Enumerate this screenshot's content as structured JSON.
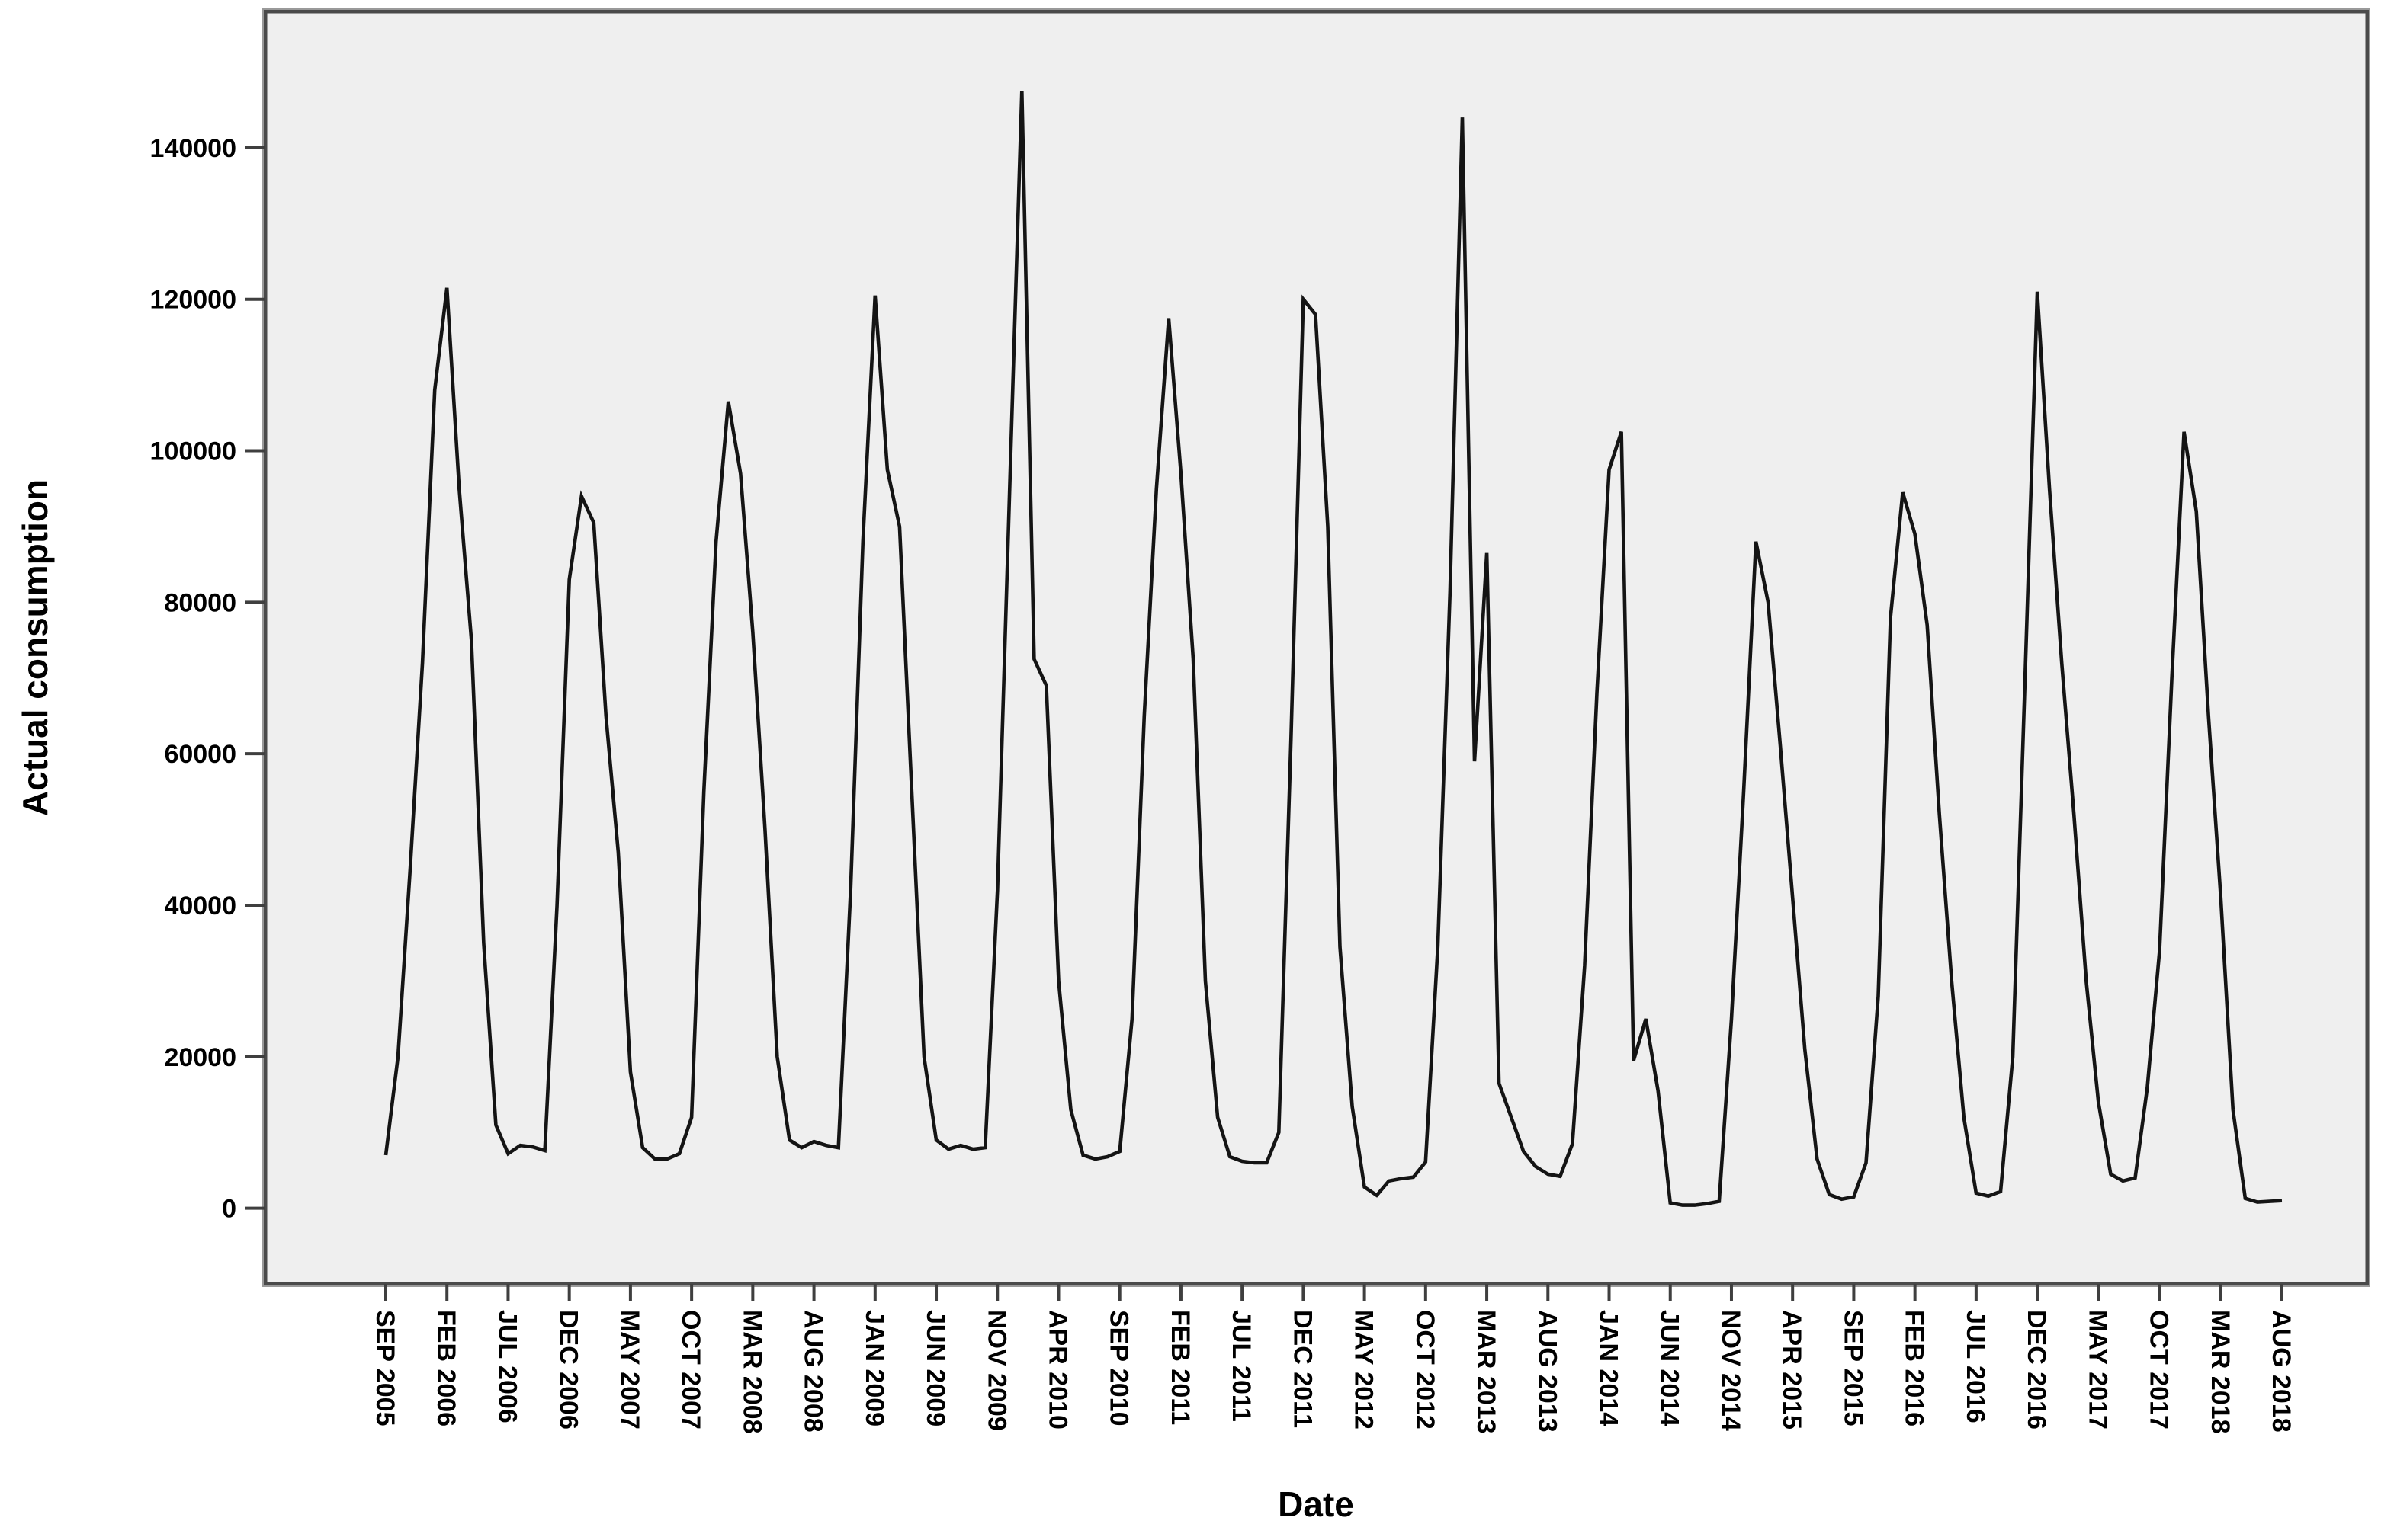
{
  "chart_data": {
    "type": "line",
    "title": "",
    "xlabel": "Date",
    "ylabel": "Actual consumption",
    "grid": "off",
    "legend": "none",
    "x_tick_labels": [
      "SEP 2005",
      "FEB 2006",
      "JUL 2006",
      "DEC 2006",
      "MAY 2007",
      "OCT 2007",
      "MAR 2008",
      "AUG 2008",
      "JAN 2009",
      "JUN 2009",
      "NOV 2009",
      "APR 2010",
      "SEP 2010",
      "FEB 2011",
      "JUL 2011",
      "DEC 2011",
      "MAY 2012",
      "OCT 2012",
      "MAR 2013",
      "AUG 2013",
      "JAN 2014",
      "JUN 2014",
      "NOV 2014",
      "APR 2015",
      "SEP 2015",
      "FEB 2016",
      "JUL 2016",
      "DEC 2016",
      "MAY 2017",
      "OCT 2017",
      "MAR 2018",
      "AUG 2018"
    ],
    "x_tick_every": 5,
    "y_tick_values": [
      0,
      20000,
      40000,
      60000,
      80000,
      100000,
      120000,
      140000
    ],
    "y_tick_labels": [
      "0",
      "20000",
      "40000",
      "60000",
      "80000",
      "100000",
      "120000",
      "140000"
    ],
    "ylim_displayed": [
      0,
      140000
    ],
    "series": [
      {
        "name": "Actual consumption",
        "start": "SEP 2005",
        "end": "AUG 2018",
        "frequency": "monthly",
        "values": [
          7000,
          20000,
          45000,
          72000,
          108000,
          121500,
          95000,
          75000,
          35000,
          11000,
          7200,
          8300,
          8100,
          7600,
          40000,
          83000,
          94000,
          90500,
          65000,
          47000,
          18000,
          8000,
          6500,
          6500,
          7200,
          12000,
          55000,
          88000,
          106500,
          97000,
          76000,
          50000,
          20000,
          9000,
          8000,
          8800,
          8300,
          8000,
          42000,
          88000,
          120500,
          97500,
          90000,
          55000,
          20000,
          9000,
          7800,
          8300,
          7800,
          8000,
          42000,
          95000,
          147500,
          72500,
          69000,
          30000,
          13000,
          7000,
          6500,
          6800,
          7500,
          25000,
          65000,
          95000,
          117500,
          97000,
          72500,
          30000,
          12000,
          6800,
          6200,
          6000,
          6000,
          10000,
          62000,
          120000,
          118000,
          90000,
          34500,
          13400,
          2800,
          1700,
          3600,
          3900,
          4100,
          6100,
          34600,
          81500,
          144000,
          59000,
          86500,
          16500,
          12000,
          7500,
          5500,
          4500,
          4200,
          8500,
          32000,
          68000,
          97500,
          102500,
          19500,
          25000,
          15500,
          700,
          400,
          400,
          600,
          900,
          25000,
          55000,
          88000,
          80000,
          61000,
          41000,
          21000,
          6500,
          1800,
          1200,
          1500,
          6000,
          28000,
          78000,
          94500,
          89000,
          77000,
          52000,
          30000,
          12000,
          2000,
          1600,
          2200,
          20000,
          70000,
          121000,
          95000,
          72000,
          52000,
          30000,
          14000,
          4500,
          3600,
          4000,
          16000,
          34000,
          70000,
          102500,
          92000,
          65000,
          41000,
          13000,
          1300,
          800,
          900,
          1000
        ]
      }
    ],
    "colors": {
      "line": "#141414",
      "plot_background": "#efefef",
      "frame_border": "#4a4a4a",
      "page_background": "#ffffff",
      "text": "#000000"
    }
  }
}
